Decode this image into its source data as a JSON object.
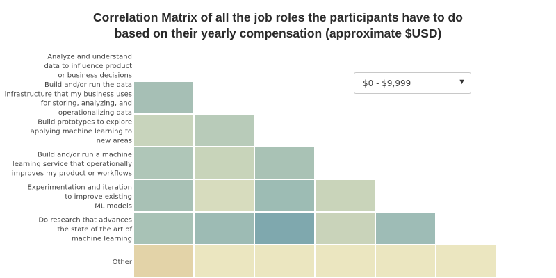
{
  "title_lines": [
    "Correlation Matrix of all the job roles the participants have to do",
    "based on their yearly compensation (approximate $USD)"
  ],
  "dropdown": {
    "selected": "$0 - $9,999",
    "arrow_icon": "triangle-down-icon"
  },
  "chart_data": {
    "type": "heatmap",
    "title": "Correlation Matrix of all the job roles the participants have to do based on their yearly compensation (approximate $USD)",
    "rows": [
      [
        "Analyze and understand",
        "data to influence product",
        "or business decisions"
      ],
      [
        "Build and/or run the data",
        "infrastructure that my business uses",
        "for storing, analyzing, and",
        "operationalizing data"
      ],
      [
        "Build prototypes to explore",
        "applying machine learning to",
        "new areas"
      ],
      [
        "Build and/or run a machine",
        "learning service that operationally",
        "improves my product or workflows"
      ],
      [
        "Experimentation and iteration",
        "to improve existing",
        "ML models"
      ],
      [
        "Do research that advances",
        "the state of the art of",
        "machine learning"
      ],
      [
        "Other"
      ]
    ],
    "colors": [
      [],
      [
        "#a6bfb5"
      ],
      [
        "#c8d4bc",
        "#b8cbb9"
      ],
      [
        "#afc6b8",
        "#c8d4ba",
        "#a9c2b5"
      ],
      [
        "#a8c1b5",
        "#d7dcbe",
        "#9dbcb4",
        "#c9d4ba"
      ],
      [
        "#a8c2b6",
        "#9dbbb4",
        "#7fa8ae",
        "#c9d3ba",
        "#9ebcb6"
      ],
      [
        "#e3d3a8",
        "#ebe6c0",
        "#ebe6c0",
        "#ebe6c0",
        "#ebe6c0",
        "#ebe6c0"
      ]
    ]
  }
}
